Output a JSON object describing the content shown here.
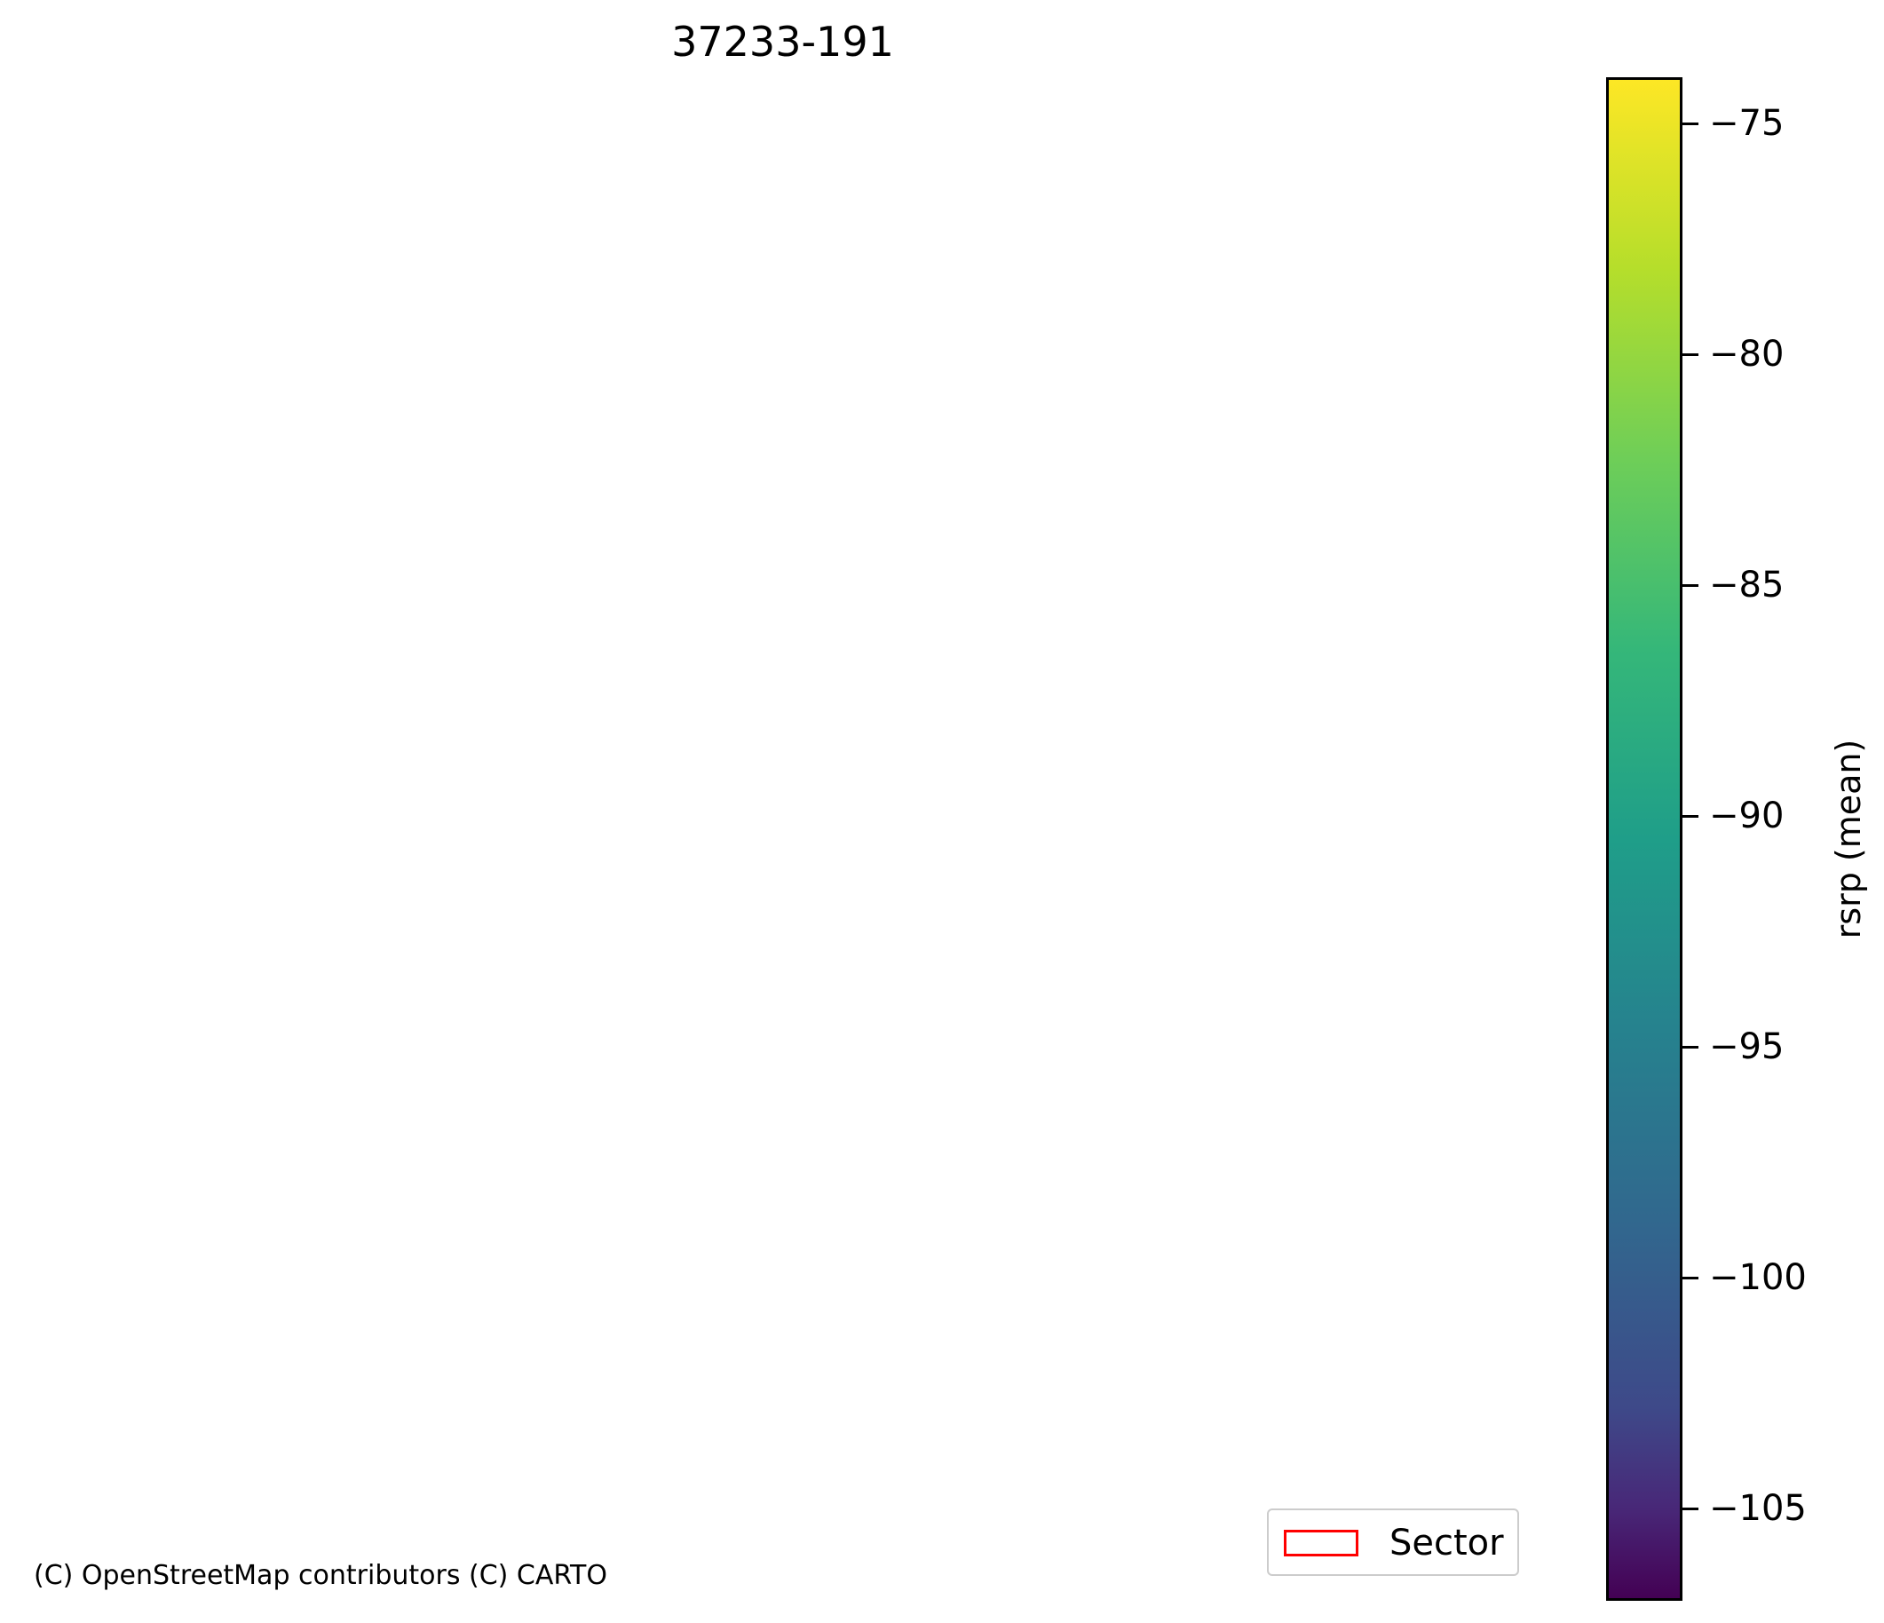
{
  "title": "37233-191",
  "attribution": "(C) OpenStreetMap contributors (C) CARTO",
  "legend": {
    "entries": [
      {
        "label": "Sector",
        "edge_color": "#ff0000",
        "fill": "none"
      }
    ]
  },
  "colorbar": {
    "label": "rsrp (mean)",
    "colormap": "viridis",
    "range": [
      -107,
      -74
    ],
    "ticks": [
      -75,
      -80,
      -85,
      -90,
      -95,
      -100,
      -105
    ],
    "tick_labels": [
      "−75",
      "−80",
      "−85",
      "−90",
      "−95",
      "−100",
      "−105"
    ]
  }
}
